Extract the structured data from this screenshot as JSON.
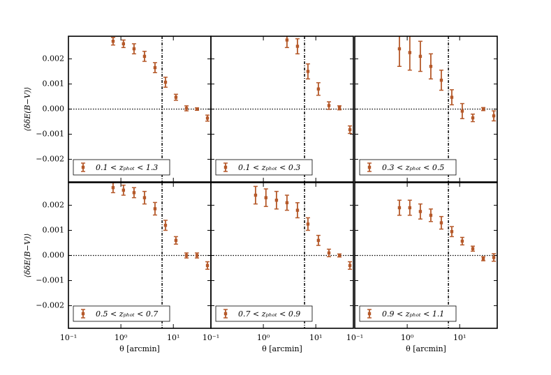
{
  "chart_data": [
    {
      "type": "errorbar",
      "ylabel": "⟨δδE(B−V)⟩",
      "xscale": "log",
      "xlim": [
        0.1,
        52
      ],
      "ylim": [
        -0.0029,
        0.0029
      ],
      "yticks": [
        0.002,
        0.001,
        {
          "value": 0,
          "label": "0.000"
        },
        {
          "value": -0.001,
          "label": "−0.001"
        },
        {
          "value": -0.002,
          "label": "−0.002"
        }
      ],
      "hline": 0,
      "vline": 6.1,
      "legend": "lower left",
      "x": [
        0.71,
        1.12,
        1.78,
        2.82,
        4.47,
        7.08,
        11.2,
        17.8,
        28.2,
        44.7
      ],
      "series": [
        {
          "name": "0.1 < zₚₕₒₜ < 1.3",
          "color": "#b5592a",
          "values": [
            0.0027,
            0.0026,
            0.0024,
            0.0021,
            0.00165,
            0.00107,
            0.00047,
            3e-05,
            0.0,
            -0.00036
          ],
          "errors": [
            0.00015,
            0.00015,
            0.0002,
            0.0002,
            0.0002,
            0.0002,
            0.00012,
            0.0001,
            5e-05,
            0.00012
          ]
        }
      ]
    },
    {
      "type": "errorbar",
      "xscale": "log",
      "xlim": [
        0.1,
        52
      ],
      "ylim": [
        -0.0029,
        0.0029
      ],
      "hline": 0,
      "vline": 6.1,
      "legend": "lower left",
      "x": [
        2.82,
        4.47,
        7.08,
        11.2,
        17.8,
        28.2,
        44.7
      ],
      "series": [
        {
          "name": "0.1 < zₚₕₒₜ < 0.3",
          "color": "#b5592a",
          "values": [
            0.00275,
            0.0025,
            0.0015,
            0.0008,
            0.00014,
            5e-05,
            -0.00082
          ],
          "errors": [
            0.0003,
            0.0003,
            0.0003,
            0.00025,
            0.00015,
            8e-05,
            0.00015
          ]
        }
      ]
    },
    {
      "type": "errorbar",
      "xscale": "log",
      "xlim": [
        0.1,
        52
      ],
      "ylim": [
        -0.0029,
        0.0029
      ],
      "hline": 0,
      "vline": 6.1,
      "legend": "lower left",
      "x": [
        0.71,
        1.12,
        1.78,
        2.82,
        4.47,
        7.08,
        11.2,
        17.8,
        28.2,
        44.7
      ],
      "series": [
        {
          "name": "0.3 < zₚₕₒₜ < 0.5",
          "color": "#b5592a",
          "values": [
            0.0024,
            0.00225,
            0.0021,
            0.0017,
            0.00115,
            0.00047,
            -8e-05,
            -0.00035,
            0.0,
            -0.00027
          ],
          "errors": [
            0.0007,
            0.0007,
            0.0006,
            0.0005,
            0.0004,
            0.0003,
            0.0003,
            0.00015,
            6e-05,
            0.0002
          ]
        }
      ]
    },
    {
      "type": "errorbar",
      "ylabel": "⟨δδE(B−V)⟩",
      "xlabel": "θ [arcmin]",
      "xscale": "log",
      "xlim": [
        0.1,
        52
      ],
      "ylim": [
        -0.0029,
        0.0029
      ],
      "xticks": [
        {
          "value": 0.1,
          "label": "10⁻¹"
        },
        {
          "value": 1,
          "label": "10⁰"
        },
        {
          "value": 10,
          "label": "10¹"
        }
      ],
      "yticks": [
        0.002,
        0.001,
        {
          "value": 0,
          "label": "0.000"
        },
        {
          "value": -0.001,
          "label": "−0.001"
        },
        {
          "value": -0.002,
          "label": "−0.002"
        }
      ],
      "hline": 0,
      "vline": 6.1,
      "legend": "lower left",
      "x": [
        0.71,
        1.12,
        1.78,
        2.82,
        4.47,
        7.08,
        11.2,
        17.8,
        28.2,
        44.7
      ],
      "series": [
        {
          "name": "0.5 < zₚₕₒₜ < 0.7",
          "color": "#b5592a",
          "values": [
            0.0027,
            0.0026,
            0.0025,
            0.0023,
            0.00186,
            0.0012,
            0.0006,
            0.0,
            0.0,
            -0.0004
          ],
          "errors": [
            0.0002,
            0.0002,
            0.0002,
            0.00025,
            0.00025,
            0.0002,
            0.00015,
            0.0001,
            0.0001,
            0.00015
          ]
        }
      ]
    },
    {
      "type": "errorbar",
      "xlabel": "θ [arcmin]",
      "xscale": "log",
      "xlim": [
        0.1,
        52
      ],
      "ylim": [
        -0.0029,
        0.0029
      ],
      "xticks": [
        {
          "value": 0.1,
          "label": "10⁻¹"
        },
        {
          "value": 1,
          "label": "10⁰"
        },
        {
          "value": 10,
          "label": "10¹"
        }
      ],
      "hline": 0,
      "vline": 6.1,
      "legend": "lower left",
      "x": [
        0.71,
        1.12,
        1.78,
        2.82,
        4.47,
        7.08,
        11.2,
        17.8,
        28.2,
        44.7
      ],
      "series": [
        {
          "name": "0.7 < zₚₕₒₜ < 0.9",
          "color": "#b5592a",
          "values": [
            0.0024,
            0.0023,
            0.0022,
            0.0021,
            0.0018,
            0.00125,
            0.0006,
            0.0001,
            0.0,
            -0.0004
          ],
          "errors": [
            0.00035,
            0.00035,
            0.00035,
            0.0003,
            0.0003,
            0.00025,
            0.0002,
            0.00015,
            6e-05,
            0.00015
          ]
        }
      ]
    },
    {
      "type": "errorbar",
      "xlabel": "θ [arcmin]",
      "xscale": "log",
      "xlim": [
        0.1,
        52
      ],
      "ylim": [
        -0.0029,
        0.0029
      ],
      "xticks": [
        {
          "value": 0.1,
          "label": "10⁻¹"
        },
        {
          "value": 1,
          "label": "10⁰"
        },
        {
          "value": 10,
          "label": "10¹"
        }
      ],
      "hline": 0,
      "vline": 6.1,
      "legend": "lower left",
      "x": [
        0.71,
        1.12,
        1.78,
        2.82,
        4.47,
        7.08,
        11.2,
        17.8,
        28.2,
        44.7
      ],
      "series": [
        {
          "name": "0.9 < zₚₕₒₜ < 1.1",
          "color": "#b5592a",
          "values": [
            0.0019,
            0.0019,
            0.00175,
            0.0016,
            0.0013,
            0.00095,
            0.00057,
            0.00027,
            -0.00013,
            -8e-05
          ],
          "errors": [
            0.0003,
            0.0003,
            0.0003,
            0.00025,
            0.00025,
            0.0002,
            0.00015,
            0.0001,
            8e-05,
            0.00015
          ]
        }
      ]
    }
  ]
}
